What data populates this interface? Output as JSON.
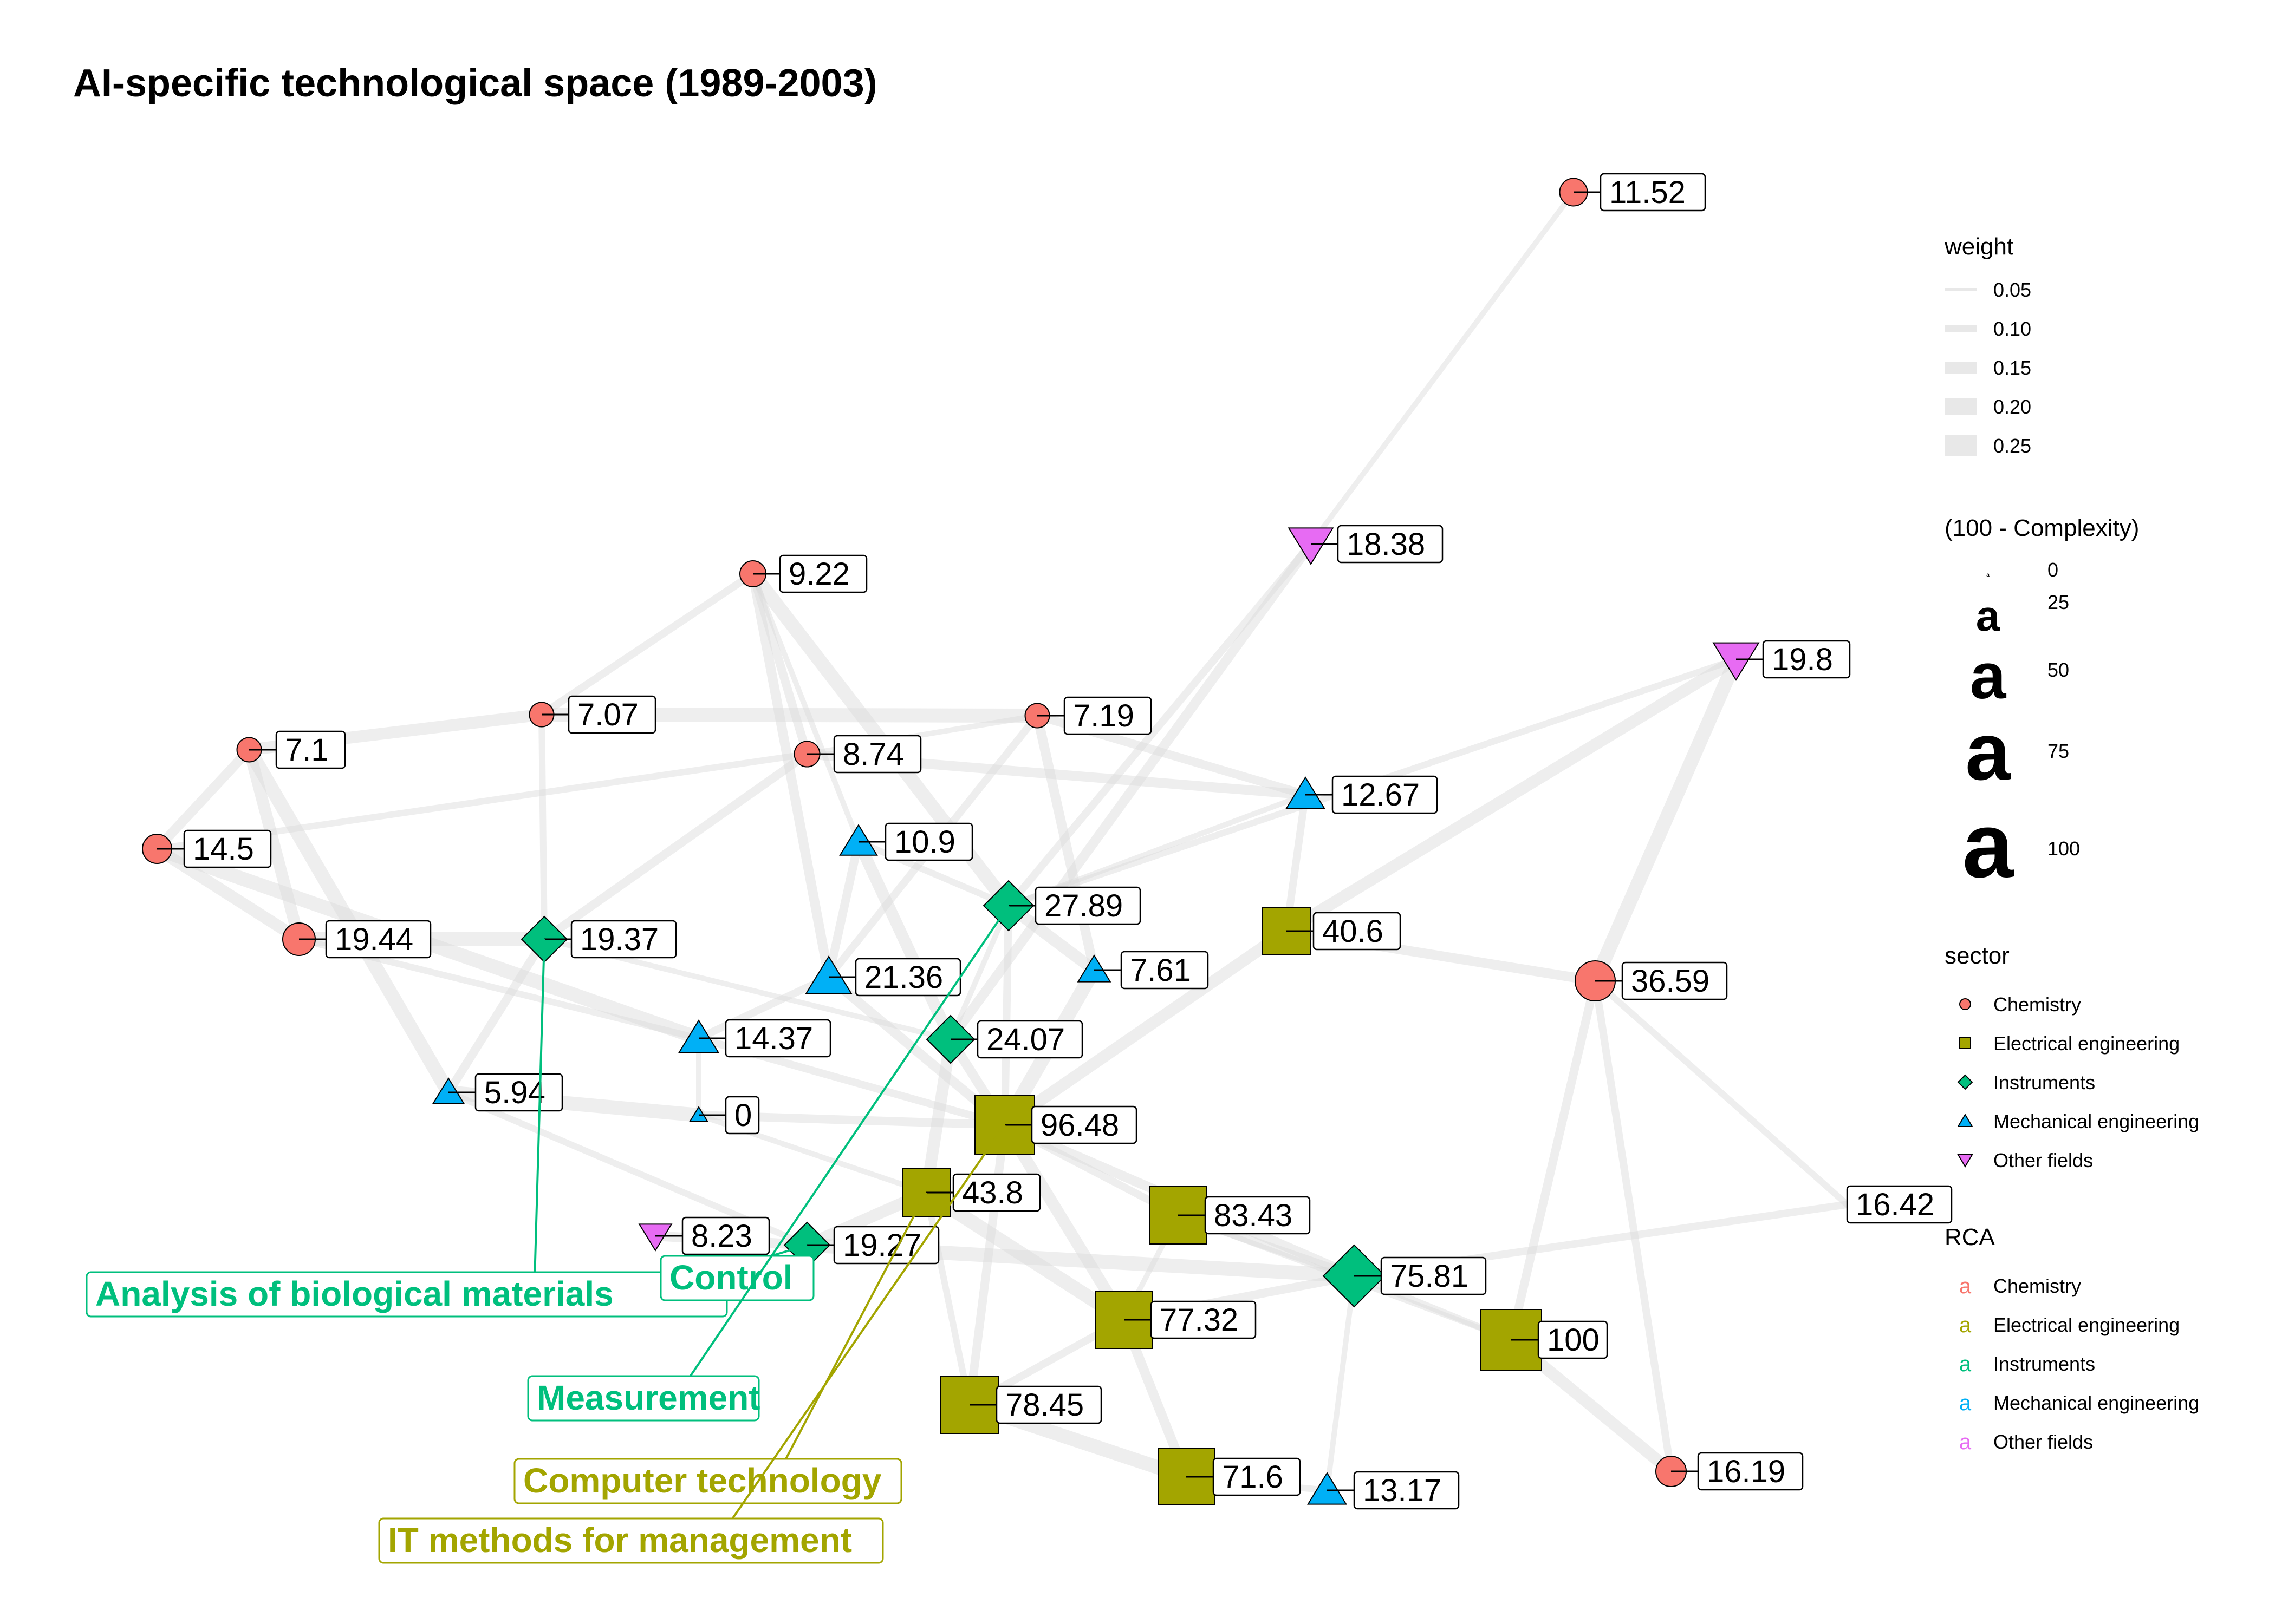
{
  "title": "AI-specific technological space (1989-2003)",
  "colors": {
    "Chemistry": "#F8766D",
    "Electrical engineering": "#A3A500",
    "Instruments": "#00BF7D",
    "Mechanical engineering": "#00B0F6",
    "Other fields": "#E76BF3"
  },
  "nodes": [
    {
      "id": "n0",
      "value": "11.52",
      "sector": "Chemistry",
      "size": 35
    },
    {
      "id": "n1",
      "value": "18.38",
      "sector": "Other fields",
      "size": 50
    },
    {
      "id": "n2",
      "value": "19.8",
      "sector": "Other fields",
      "size": 52
    },
    {
      "id": "n3",
      "value": "9.22",
      "sector": "Chemistry",
      "size": 32
    },
    {
      "id": "n4",
      "value": "7.07",
      "sector": "Chemistry",
      "size": 29
    },
    {
      "id": "n5",
      "value": "7.19",
      "sector": "Chemistry",
      "size": 29
    },
    {
      "id": "n6",
      "value": "7.1",
      "sector": "Chemistry",
      "size": 29
    },
    {
      "id": "n7",
      "value": "8.74",
      "sector": "Chemistry",
      "size": 31
    },
    {
      "id": "n8",
      "value": "12.67",
      "sector": "Mechanical engineering",
      "size": 40
    },
    {
      "id": "n9",
      "value": "14.5",
      "sector": "Chemistry",
      "size": 38
    },
    {
      "id": "n10",
      "value": "10.9",
      "sector": "Mechanical engineering",
      "size": 38
    },
    {
      "id": "n11",
      "value": "27.89",
      "sector": "Instruments",
      "size": 56
    },
    {
      "id": "n12",
      "value": "40.6",
      "sector": "Electrical engineering",
      "size": 58
    },
    {
      "id": "n13",
      "value": "19.44",
      "sector": "Chemistry",
      "size": 44
    },
    {
      "id": "n14",
      "value": "19.37",
      "sector": "Instruments",
      "size": 48
    },
    {
      "id": "n15",
      "value": "21.36",
      "sector": "Mechanical engineering",
      "size": 52
    },
    {
      "id": "n16",
      "value": "7.61",
      "sector": "Mechanical engineering",
      "size": 30
    },
    {
      "id": "n17",
      "value": "36.59",
      "sector": "Chemistry",
      "size": 58
    },
    {
      "id": "n18",
      "value": "14.37",
      "sector": "Mechanical engineering",
      "size": 42
    },
    {
      "id": "n19",
      "value": "24.07",
      "sector": "Instruments",
      "size": 52
    },
    {
      "id": "n20",
      "value": "5.94",
      "sector": "Mechanical engineering",
      "size": 28
    },
    {
      "id": "n21",
      "value": "0",
      "sector": "Mechanical engineering",
      "size": 6
    },
    {
      "id": "n22",
      "value": "96.48",
      "sector": "Electrical engineering",
      "size": 80
    },
    {
      "id": "n23",
      "value": "43.8",
      "sector": "Electrical engineering",
      "size": 58
    },
    {
      "id": "n24",
      "value": "83.43",
      "sector": "Electrical engineering",
      "size": 76
    },
    {
      "id": "n25",
      "value": "16.42",
      "sector": "",
      "size": 0
    },
    {
      "id": "n26",
      "value": "8.23",
      "sector": "Other fields",
      "size": 30
    },
    {
      "id": "n27",
      "value": "19.27",
      "sector": "Instruments",
      "size": 48
    },
    {
      "id": "n28",
      "value": "75.81",
      "sector": "Instruments",
      "size": 78
    },
    {
      "id": "n29",
      "value": "77.32",
      "sector": "Electrical engineering",
      "size": 76
    },
    {
      "id": "n30",
      "value": "100",
      "sector": "Electrical engineering",
      "size": 82
    },
    {
      "id": "n31",
      "value": "78.45",
      "sector": "Electrical engineering",
      "size": 76
    },
    {
      "id": "n32",
      "value": "71.6",
      "sector": "Electrical engineering",
      "size": 74
    },
    {
      "id": "n33",
      "value": "13.17",
      "sector": "Mechanical engineering",
      "size": 40
    },
    {
      "id": "n34",
      "value": "16.19",
      "sector": "Chemistry",
      "size": 40
    }
  ],
  "edges": [
    [
      "n0",
      "n1"
    ],
    [
      "n1",
      "n11"
    ],
    [
      "n1",
      "n19"
    ],
    [
      "n2",
      "n12"
    ],
    [
      "n2",
      "n17"
    ],
    [
      "n2",
      "n11"
    ],
    [
      "n3",
      "n7"
    ],
    [
      "n3",
      "n10"
    ],
    [
      "n3",
      "n4"
    ],
    [
      "n3",
      "n15"
    ],
    [
      "n4",
      "n6"
    ],
    [
      "n4",
      "n5"
    ],
    [
      "n4",
      "n14"
    ],
    [
      "n5",
      "n8"
    ],
    [
      "n5",
      "n7"
    ],
    [
      "n5",
      "n15"
    ],
    [
      "n6",
      "n9"
    ],
    [
      "n6",
      "n13"
    ],
    [
      "n6",
      "n20"
    ],
    [
      "n7",
      "n9"
    ],
    [
      "n7",
      "n14"
    ],
    [
      "n8",
      "n11"
    ],
    [
      "n8",
      "n12"
    ],
    [
      "n8",
      "n7"
    ],
    [
      "n9",
      "n13"
    ],
    [
      "n9",
      "n18"
    ],
    [
      "n10",
      "n11"
    ],
    [
      "n10",
      "n15"
    ],
    [
      "n11",
      "n19"
    ],
    [
      "n11",
      "n22"
    ],
    [
      "n12",
      "n17"
    ],
    [
      "n12",
      "n22"
    ],
    [
      "n13",
      "n14"
    ],
    [
      "n13",
      "n18"
    ],
    [
      "n14",
      "n20"
    ],
    [
      "n14",
      "n19"
    ],
    [
      "n15",
      "n18"
    ],
    [
      "n15",
      "n22"
    ],
    [
      "n16",
      "n11"
    ],
    [
      "n16",
      "n22"
    ],
    [
      "n17",
      "n25"
    ],
    [
      "n17",
      "n30"
    ],
    [
      "n18",
      "n21"
    ],
    [
      "n18",
      "n22"
    ],
    [
      "n19",
      "n22"
    ],
    [
      "n19",
      "n23"
    ],
    [
      "n20",
      "n21"
    ],
    [
      "n20",
      "n27"
    ],
    [
      "n21",
      "n22"
    ],
    [
      "n21",
      "n23"
    ],
    [
      "n22",
      "n24"
    ],
    [
      "n22",
      "n28"
    ],
    [
      "n22",
      "n29"
    ],
    [
      "n23",
      "n29"
    ],
    [
      "n23",
      "n31"
    ],
    [
      "n24",
      "n28"
    ],
    [
      "n24",
      "n30"
    ],
    [
      "n25",
      "n28"
    ],
    [
      "n26",
      "n27"
    ],
    [
      "n27",
      "n23"
    ],
    [
      "n27",
      "n28"
    ],
    [
      "n28",
      "n30"
    ],
    [
      "n28",
      "n29"
    ],
    [
      "n28",
      "n33"
    ],
    [
      "n29",
      "n31"
    ],
    [
      "n29",
      "n32"
    ],
    [
      "n30",
      "n34"
    ],
    [
      "n31",
      "n32"
    ],
    [
      "n32",
      "n33"
    ],
    [
      "n22",
      "n31"
    ],
    [
      "n24",
      "n29"
    ],
    [
      "n17",
      "n34"
    ],
    [
      "n5",
      "n16"
    ],
    [
      "n10",
      "n19"
    ],
    [
      "n3",
      "n11"
    ]
  ],
  "field_labels": [
    {
      "text": "Analysis of biological materials",
      "sector": "Instruments",
      "target": "n14"
    },
    {
      "text": "Control",
      "sector": "Instruments",
      "target": "n27"
    },
    {
      "text": "Measurement",
      "sector": "Instruments",
      "target": "n11"
    },
    {
      "text": "Computer technology",
      "sector": "Electrical engineering",
      "target": "n23"
    },
    {
      "text": "IT methods for management",
      "sector": "Electrical engineering",
      "target": "n22"
    }
  ],
  "legend": {
    "weight_title": "weight",
    "weight_items": [
      "0.05",
      "0.10",
      "0.15",
      "0.20",
      "0.25"
    ],
    "size_title": "(100 - Complexity)",
    "size_items": [
      "0",
      "25",
      "50",
      "75",
      "100"
    ],
    "size_glyph": "a",
    "sector_title": "sector",
    "sector_items": [
      "Chemistry",
      "Electrical engineering",
      "Instruments",
      "Mechanical engineering",
      "Other fields"
    ],
    "rca_title": "RCA",
    "rca_items": [
      "Chemistry",
      "Electrical engineering",
      "Instruments",
      "Mechanical engineering",
      "Other fields"
    ],
    "rca_glyph": "a"
  }
}
